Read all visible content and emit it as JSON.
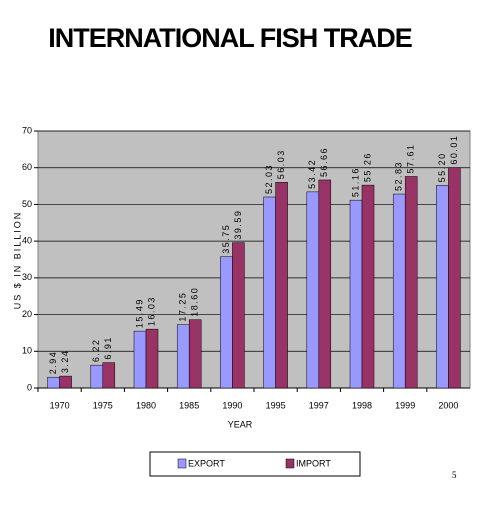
{
  "chart_data": {
    "type": "bar",
    "title": "INTERNATIONAL FISH TRADE",
    "x_label": "YEAR",
    "y_label": "US $ IN BILLION",
    "categories": [
      "1970",
      "1975",
      "1980",
      "1985",
      "1990",
      "1995",
      "1997",
      "1998",
      "1999",
      "2000"
    ],
    "series": [
      {
        "name": "EXPORT",
        "color": "#9999ff",
        "values": [
          2.94,
          6.22,
          15.49,
          17.25,
          35.75,
          52.03,
          53.42,
          51.16,
          52.83,
          55.2
        ],
        "value_labels": [
          "2.94",
          "6.22",
          "15.49",
          "17.25",
          "35.75",
          "52.03",
          "53.42",
          "51.16",
          "52.83",
          "55.20"
        ]
      },
      {
        "name": "IMPORT",
        "color": "#993366",
        "values": [
          3.24,
          6.91,
          16.03,
          18.6,
          39.59,
          56.03,
          56.66,
          55.26,
          57.61,
          60.01
        ],
        "value_labels": [
          "3.24",
          "6.91",
          "16.03",
          "18.60",
          "39.59",
          "56.03",
          "56.66",
          "55.26",
          "57.61",
          "60.01"
        ]
      }
    ],
    "ylim": [
      0,
      70
    ],
    "yticks": [
      0,
      10,
      20,
      30,
      40,
      50,
      60,
      70
    ],
    "grid": true,
    "legend": "bottom"
  },
  "page_number": 5
}
